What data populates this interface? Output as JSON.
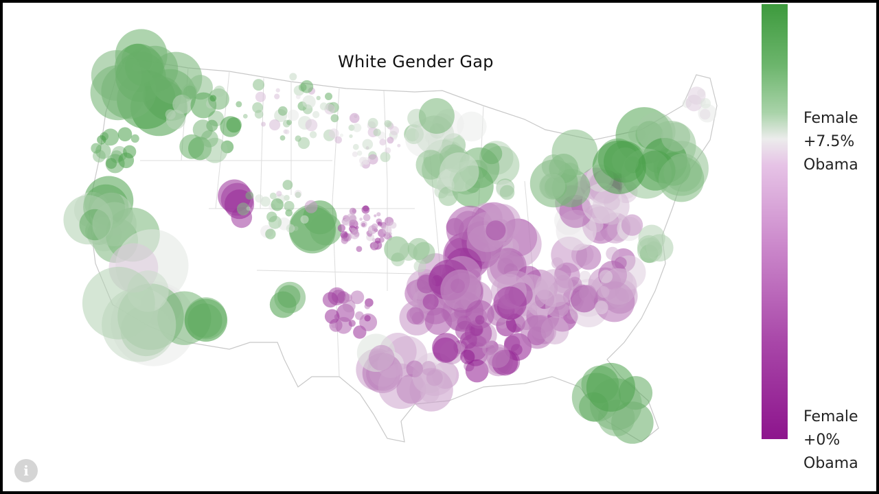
{
  "map": {
    "title": "White Gender Gap",
    "colors": {
      "green_end": "#3d9a3d",
      "neutral": "#ececec",
      "purple_end": "#8d158d",
      "border": "#c8c8c8"
    }
  },
  "legend": {
    "top_label": "Female\n+7.5%\nObama",
    "bottom_label": "Female\n+0%\nObama"
  },
  "info": {
    "icon": "info-icon",
    "glyph": "i"
  }
}
